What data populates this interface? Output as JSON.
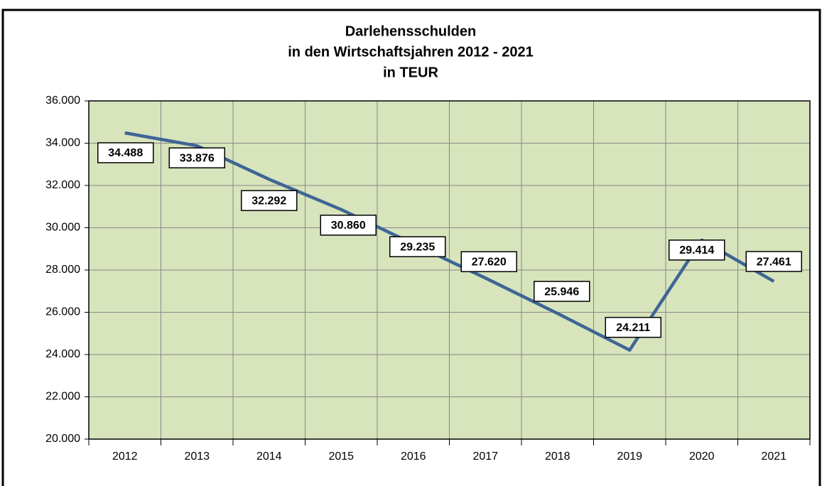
{
  "chart_data": {
    "type": "line",
    "title": [
      "Darlehensschulden",
      "in den Wirtschaftsjahren 2012 - 2021",
      "in TEUR"
    ],
    "categories": [
      "2012",
      "2013",
      "2014",
      "2015",
      "2016",
      "2017",
      "2018",
      "2019",
      "2020",
      "2021"
    ],
    "series": [
      {
        "color": "#3f6596",
        "values": [
          34488,
          33876,
          32292,
          30860,
          29235,
          27620,
          25946,
          24211,
          29414,
          27461
        ],
        "value_labels": [
          "34.488",
          "33.876",
          "32.292",
          "30.860",
          "29.235",
          "27.620",
          "25.946",
          "24.211",
          "29.414",
          "27.461"
        ]
      }
    ],
    "ylim": [
      20000,
      36000
    ],
    "yticks": [
      {
        "value": 20000,
        "label": "20.000"
      },
      {
        "value": 22000,
        "label": "22.000"
      },
      {
        "value": 24000,
        "label": "24.000"
      },
      {
        "value": 26000,
        "label": "26.000"
      },
      {
        "value": 28000,
        "label": "28.000"
      },
      {
        "value": 30000,
        "label": "30.000"
      },
      {
        "value": 32000,
        "label": "32.000"
      },
      {
        "value": 34000,
        "label": "34.000"
      },
      {
        "value": 36000,
        "label": "36.000"
      }
    ],
    "grid": true
  }
}
